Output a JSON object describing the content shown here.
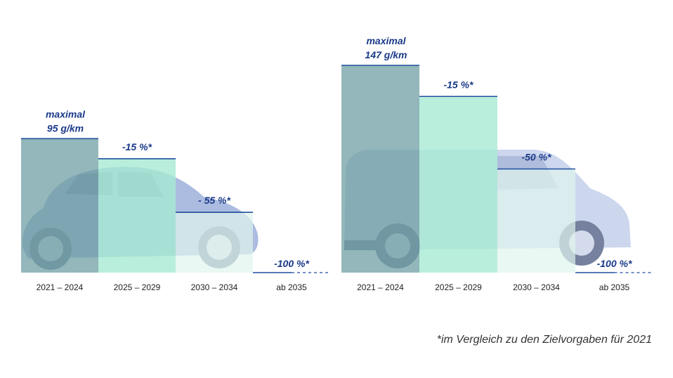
{
  "chart_data": [
    {
      "type": "bar",
      "vehicle": "car",
      "categories": [
        "2021 – 2024",
        "2025 – 2029",
        "2030 – 2034",
        "ab 2035"
      ],
      "values": [
        95,
        80.75,
        42.75,
        0
      ],
      "unit": "g/km",
      "ylim": [
        0,
        147
      ],
      "grid": false,
      "annotations": [
        "maximal",
        "95 g/km",
        "-15 %*",
        "- 55 %*",
        "-100 %*"
      ]
    },
    {
      "type": "bar",
      "vehicle": "van",
      "categories": [
        "2021 – 2024",
        "2025 – 2029",
        "2030 – 2034",
        "ab 2035"
      ],
      "values": [
        147,
        124.95,
        73.5,
        0
      ],
      "unit": "g/km",
      "ylim": [
        0,
        147
      ],
      "grid": false,
      "annotations": [
        "maximal",
        "147 g/km",
        "-15 %*",
        "-50 %*",
        "-100 %*"
      ]
    }
  ],
  "footnote": "*im Vergleich zu den Zielvorgaben für 2021",
  "colors": {
    "bar1": "#6f9fa3",
    "bar2": "#a6ead2",
    "bar3": "#dff5ec",
    "topline": "#1f4e9e",
    "label": "#1b3a8a",
    "tick": "#222222",
    "car_body": "#8fa6d6",
    "van_body": "#b7c6e6"
  }
}
